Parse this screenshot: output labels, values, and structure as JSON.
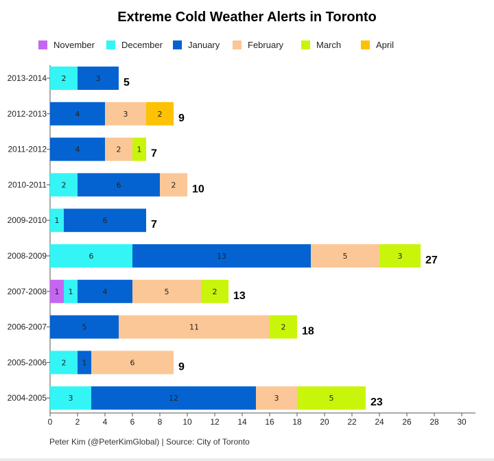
{
  "colors": {
    "November": "#c466f2",
    "December": "#33f5f5",
    "January": "#0563d1",
    "February": "#fbc797",
    "March": "#c8f50a",
    "April": "#fcc203"
  },
  "chart_data": {
    "type": "bar",
    "orientation": "horizontal",
    "stacked": true,
    "title": "Extreme Cold Weather Alerts in Toronto",
    "xlabel": "",
    "ylabel": "",
    "xlim": [
      0,
      30
    ],
    "xticks": [
      0,
      2,
      4,
      6,
      8,
      10,
      12,
      14,
      16,
      18,
      20,
      22,
      24,
      26,
      28,
      30
    ],
    "grid": false,
    "legend_position": "top",
    "categories": [
      "2013-2014",
      "2012-2013",
      "2011-2012",
      "2010-2011",
      "2009-2010",
      "2008-2009",
      "2007-2008",
      "2006-2007",
      "2005-2006",
      "2004-2005"
    ],
    "series": [
      {
        "name": "November",
        "values": [
          0,
          0,
          0,
          0,
          0,
          0,
          1,
          0,
          0,
          0
        ]
      },
      {
        "name": "December",
        "values": [
          2,
          0,
          0,
          2,
          1,
          6,
          1,
          0,
          2,
          3
        ]
      },
      {
        "name": "January",
        "values": [
          3,
          4,
          4,
          6,
          6,
          13,
          4,
          5,
          1,
          12
        ]
      },
      {
        "name": "February",
        "values": [
          0,
          3,
          2,
          2,
          0,
          5,
          5,
          11,
          6,
          3
        ]
      },
      {
        "name": "March",
        "values": [
          0,
          0,
          1,
          0,
          0,
          3,
          2,
          2,
          0,
          5
        ]
      },
      {
        "name": "April",
        "values": [
          0,
          2,
          0,
          0,
          0,
          0,
          0,
          0,
          0,
          0
        ]
      }
    ],
    "totals": [
      5,
      9,
      7,
      10,
      7,
      27,
      13,
      18,
      9,
      23
    ]
  },
  "source": "Peter Kim (@PeterKimGlobal) | Source: City of Toronto"
}
